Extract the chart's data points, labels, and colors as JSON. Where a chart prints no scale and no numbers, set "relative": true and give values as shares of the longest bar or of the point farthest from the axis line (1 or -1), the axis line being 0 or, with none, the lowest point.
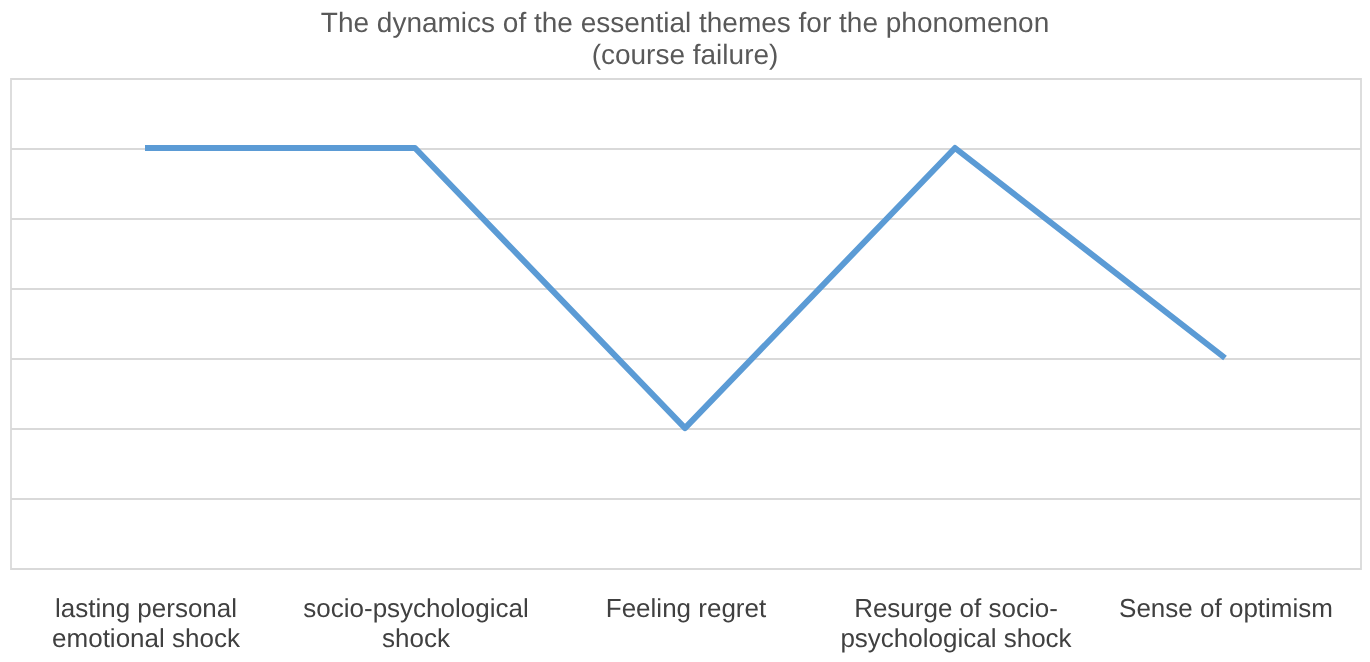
{
  "chart_data": {
    "type": "line",
    "title": "The dynamics of the essential themes for the phonomenon (course failure)",
    "categories": [
      "lasting personal emotional shock",
      "socio-psychological shock",
      "Feeling regret",
      "Resurge of socio-psychological shock",
      "Sense of optimism"
    ],
    "series": [
      {
        "color": "#5b9bd5",
        "values": [
          1,
          1,
          0.333,
          1,
          0.5
        ]
      }
    ],
    "relative": true,
    "grid": "y",
    "marker": "none"
  }
}
